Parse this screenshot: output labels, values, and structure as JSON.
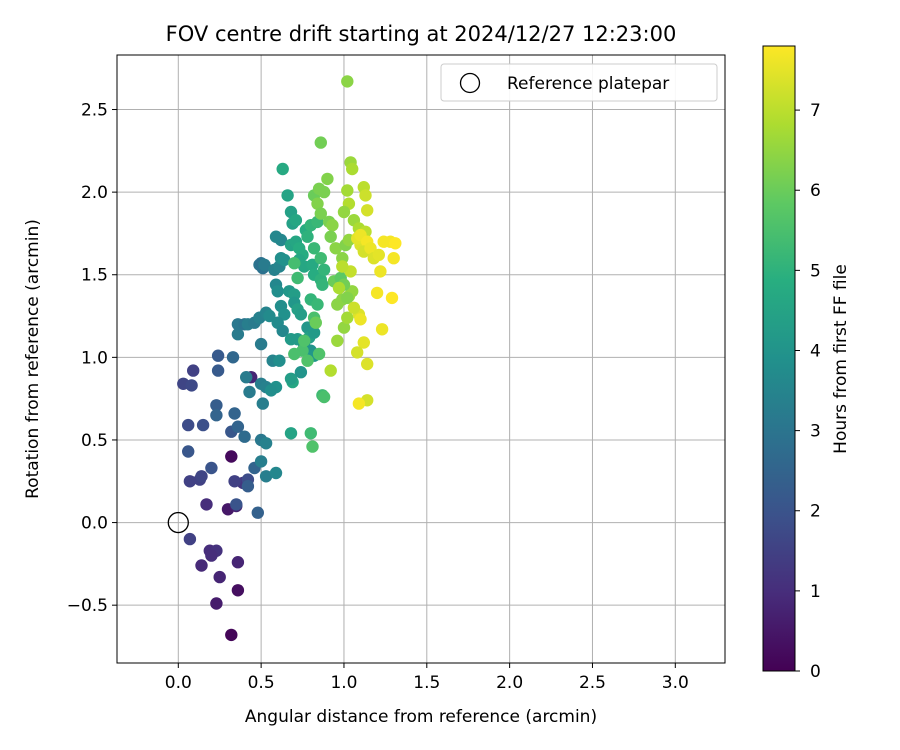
{
  "chart_data": {
    "type": "scatter",
    "title": "FOV centre drift starting at 2024/12/27 12:23:00",
    "xlabel": "Angular distance from reference (arcmin)",
    "ylabel": "Rotation from reference (arcmin)",
    "xlim": [
      -0.37,
      3.3
    ],
    "ylim": [
      -0.85,
      2.83
    ],
    "xticks": [
      0.0,
      0.5,
      1.0,
      1.5,
      2.0,
      2.5,
      3.0
    ],
    "xtick_labels": [
      "0.0",
      "0.5",
      "1.0",
      "1.5",
      "2.0",
      "2.5",
      "3.0"
    ],
    "yticks": [
      -0.5,
      0.0,
      0.5,
      1.0,
      1.5,
      2.0,
      2.5
    ],
    "ytick_labels": [
      "−0.5",
      "0.0",
      "0.5",
      "1.0",
      "1.5",
      "2.0",
      "2.5"
    ],
    "grid": true,
    "legend": {
      "position": "top-right",
      "entries": [
        "Reference platepar"
      ]
    },
    "reference_point": {
      "x": 0.0,
      "y": 0.0
    },
    "colorbar": {
      "label": "Hours from first FF file",
      "range": [
        0,
        7.8
      ],
      "ticks": [
        0,
        1,
        2,
        3,
        4,
        5,
        6,
        7
      ],
      "tick_labels": [
        "0",
        "1",
        "2",
        "3",
        "4",
        "5",
        "6",
        "7"
      ],
      "colormap": "viridis"
    },
    "series": [
      {
        "points": [
          [
            0.32,
            -0.68,
            0.1
          ],
          [
            0.36,
            -0.41,
            0.3
          ],
          [
            0.23,
            -0.49,
            0.6
          ],
          [
            0.25,
            -0.33,
            0.8
          ],
          [
            0.36,
            -0.24,
            0.8
          ],
          [
            0.14,
            -0.26,
            0.9
          ],
          [
            0.19,
            -0.17,
            1.0
          ],
          [
            0.23,
            -0.17,
            1.1
          ],
          [
            0.2,
            -0.2,
            1.0
          ],
          [
            0.07,
            -0.1,
            1.5
          ],
          [
            0.32,
            0.4,
            0.2
          ],
          [
            0.3,
            0.08,
            0.5
          ],
          [
            0.35,
            0.1,
            0.7
          ],
          [
            0.17,
            0.11,
            1.0
          ],
          [
            0.39,
            0.24,
            1.2
          ],
          [
            0.34,
            0.25,
            1.5
          ],
          [
            0.13,
            0.26,
            1.5
          ],
          [
            0.07,
            0.25,
            1.5
          ],
          [
            0.14,
            0.28,
            1.6
          ],
          [
            0.2,
            0.33,
            2.0
          ],
          [
            0.42,
            0.26,
            1.8
          ],
          [
            0.46,
            0.33,
            2.5
          ],
          [
            0.42,
            0.22,
            2.3
          ],
          [
            0.35,
            0.11,
            2.0
          ],
          [
            0.09,
            0.92,
            1.5
          ],
          [
            0.03,
            0.84,
            1.6
          ],
          [
            0.08,
            0.83,
            1.7
          ],
          [
            0.06,
            0.59,
            1.8
          ],
          [
            0.15,
            0.59,
            1.9
          ],
          [
            0.06,
            0.43,
            2.1
          ],
          [
            0.24,
            1.01,
            2.2
          ],
          [
            0.24,
            0.92,
            2.2
          ],
          [
            0.33,
            1.0,
            2.6
          ],
          [
            0.23,
            0.71,
            2.3
          ],
          [
            0.23,
            0.65,
            2.5
          ],
          [
            0.34,
            0.66,
            2.5
          ],
          [
            0.32,
            0.55,
            2.1
          ],
          [
            0.36,
            0.58,
            2.5
          ],
          [
            0.4,
            0.52,
            2.7
          ],
          [
            0.48,
            0.06,
            2.4
          ],
          [
            0.44,
            0.88,
            0.8
          ],
          [
            0.41,
            0.88,
            3.2
          ],
          [
            0.43,
            0.79,
            3.2
          ],
          [
            0.36,
            1.14,
            3.2
          ],
          [
            0.36,
            1.2,
            3.1
          ],
          [
            0.4,
            1.2,
            3.0
          ],
          [
            0.42,
            1.2,
            3.3
          ],
          [
            0.46,
            1.21,
            3.2
          ],
          [
            0.49,
            1.24,
            3.4
          ],
          [
            0.5,
            1.08,
            3.2
          ],
          [
            0.49,
            1.56,
            3.0
          ],
          [
            0.5,
            1.57,
            2.9
          ],
          [
            0.51,
            1.54,
            2.9
          ],
          [
            0.52,
            1.56,
            3.2
          ],
          [
            0.53,
            1.27,
            3.5
          ],
          [
            0.55,
            1.25,
            3.7
          ],
          [
            0.5,
            0.84,
            3.3
          ],
          [
            0.51,
            0.72,
            3.3
          ],
          [
            0.53,
            0.82,
            3.4
          ],
          [
            0.5,
            0.5,
            3.1
          ],
          [
            0.53,
            0.48,
            3.4
          ],
          [
            0.5,
            0.37,
            3.3
          ],
          [
            0.53,
            0.28,
            3.3
          ],
          [
            0.59,
            0.3,
            3.6
          ],
          [
            0.58,
            1.53,
            3.4
          ],
          [
            0.61,
            1.55,
            3.5
          ],
          [
            0.59,
            1.44,
            3.6
          ],
          [
            0.6,
            1.4,
            3.8
          ],
          [
            0.62,
            1.31,
            3.8
          ],
          [
            0.64,
            1.26,
            3.9
          ],
          [
            0.59,
            1.73,
            3.6
          ],
          [
            0.62,
            1.71,
            3.6
          ],
          [
            0.62,
            1.6,
            3.8
          ],
          [
            0.64,
            1.59,
            3.9
          ],
          [
            0.6,
            1.21,
            3.7
          ],
          [
            0.63,
            1.16,
            3.6
          ],
          [
            0.57,
            0.98,
            3.5
          ],
          [
            0.61,
            0.98,
            3.8
          ],
          [
            0.59,
            0.82,
            3.9
          ],
          [
            0.56,
            0.8,
            3.8
          ],
          [
            0.63,
            2.14,
            4.7
          ],
          [
            0.66,
            1.98,
            4.5
          ],
          [
            0.68,
            1.88,
            4.4
          ],
          [
            0.69,
            1.81,
            4.4
          ],
          [
            0.71,
            1.83,
            4.6
          ],
          [
            0.68,
            1.68,
            4.5
          ],
          [
            0.71,
            1.7,
            4.6
          ],
          [
            0.73,
            1.66,
            4.8
          ],
          [
            0.75,
            1.62,
            4.8
          ],
          [
            0.73,
            1.59,
            4.6
          ],
          [
            0.67,
            1.4,
            4.1
          ],
          [
            0.7,
            1.38,
            4.3
          ],
          [
            0.7,
            1.33,
            4.1
          ],
          [
            0.72,
            1.29,
            4.4
          ],
          [
            0.74,
            1.26,
            4.3
          ],
          [
            0.68,
            1.11,
            4.2
          ],
          [
            0.72,
            1.11,
            4.2
          ],
          [
            0.76,
            1.07,
            4.3
          ],
          [
            0.69,
            0.85,
            4.6
          ],
          [
            0.68,
            0.87,
            4.3
          ],
          [
            0.74,
            0.91,
            4.0
          ],
          [
            0.68,
            0.54,
            4.5
          ],
          [
            0.78,
            1.18,
            4.1
          ],
          [
            0.79,
            1.12,
            4.4
          ],
          [
            0.82,
            1.15,
            4.2
          ],
          [
            0.8,
            1.04,
            4.0
          ],
          [
            0.82,
            1.01,
            4.1
          ],
          [
            0.76,
            1.55,
            4.6
          ],
          [
            0.81,
            1.56,
            4.7
          ],
          [
            0.82,
            1.5,
            4.8
          ],
          [
            0.86,
            1.47,
            5.0
          ],
          [
            0.77,
            1.77,
            4.8
          ],
          [
            0.8,
            1.8,
            5.1
          ],
          [
            0.84,
            1.82,
            5.2
          ],
          [
            0.78,
            1.73,
            5.0
          ],
          [
            0.82,
            1.66,
            5.2
          ],
          [
            0.86,
            1.6,
            5.3
          ],
          [
            0.8,
            1.35,
            5.1
          ],
          [
            0.84,
            1.32,
            5.2
          ],
          [
            0.82,
            1.24,
            5.5
          ],
          [
            0.87,
            1.44,
            5.1
          ],
          [
            0.88,
            1.53,
            5.1
          ],
          [
            0.72,
            1.48,
            5.3
          ],
          [
            0.7,
            1.57,
            5.4
          ],
          [
            0.75,
            1.04,
            5.5
          ],
          [
            0.7,
            1.02,
            5.5
          ],
          [
            0.76,
            1.1,
            5.6
          ],
          [
            0.78,
            0.98,
            5.6
          ],
          [
            0.8,
            0.54,
            5.3
          ],
          [
            0.81,
            0.46,
            5.6
          ],
          [
            0.87,
            0.77,
            5.3
          ],
          [
            0.88,
            0.76,
            5.5
          ],
          [
            0.85,
            1.02,
            5.6
          ],
          [
            0.83,
            1.21,
            6.0
          ],
          [
            0.82,
            1.98,
            6.0
          ],
          [
            0.85,
            2.02,
            6.2
          ],
          [
            0.88,
            2.0,
            6.2
          ],
          [
            0.9,
            2.08,
            6.3
          ],
          [
            0.84,
            1.93,
            6.3
          ],
          [
            0.86,
            1.87,
            6.2
          ],
          [
            0.91,
            1.82,
            6.2
          ],
          [
            0.93,
            1.8,
            6.4
          ],
          [
            0.86,
            2.3,
            6.1
          ],
          [
            0.92,
            1.73,
            6.2
          ],
          [
            0.95,
            1.66,
            6.4
          ],
          [
            0.99,
            1.6,
            6.4
          ],
          [
            1.01,
            1.68,
            6.3
          ],
          [
            1.03,
            1.71,
            6.5
          ],
          [
            0.96,
            1.32,
            6.4
          ],
          [
            0.99,
            1.35,
            6.4
          ],
          [
            1.03,
            1.37,
            6.6
          ],
          [
            1.05,
            1.4,
            6.5
          ],
          [
            0.94,
            1.46,
            6.0
          ],
          [
            0.98,
            1.48,
            5.8
          ],
          [
            1.0,
            1.44,
            6.1
          ],
          [
            1.02,
            1.36,
            6.3
          ],
          [
            0.96,
            1.1,
            6.6
          ],
          [
            1.0,
            1.18,
            6.5
          ],
          [
            1.02,
            1.24,
            6.7
          ],
          [
            0.92,
            0.92,
            6.9
          ],
          [
            1.02,
            2.67,
            6.4
          ],
          [
            1.04,
            2.18,
            6.6
          ],
          [
            1.05,
            2.14,
            6.8
          ],
          [
            1.02,
            2.01,
            6.7
          ],
          [
            1.03,
            1.93,
            6.9
          ],
          [
            1.0,
            1.88,
            6.5
          ],
          [
            1.06,
            1.83,
            6.6
          ],
          [
            1.09,
            1.78,
            6.8
          ],
          [
            1.12,
            1.71,
            7.0
          ],
          [
            1.13,
            1.76,
            7.0
          ],
          [
            1.12,
            2.03,
            7.0
          ],
          [
            1.13,
            1.98,
            7.2
          ],
          [
            1.14,
            1.89,
            7.3
          ],
          [
            1.1,
            1.68,
            7.4
          ],
          [
            1.08,
            1.72,
            7.5
          ],
          [
            1.1,
            1.74,
            7.6
          ],
          [
            1.14,
            1.7,
            7.7
          ],
          [
            1.12,
            1.64,
            7.3
          ],
          [
            1.16,
            1.66,
            7.6
          ],
          [
            1.18,
            1.6,
            7.4
          ],
          [
            1.21,
            1.62,
            7.5
          ],
          [
            1.24,
            1.7,
            7.7
          ],
          [
            1.28,
            1.7,
            7.7
          ],
          [
            1.31,
            1.69,
            7.8
          ],
          [
            1.3,
            1.6,
            7.7
          ],
          [
            1.22,
            1.52,
            7.6
          ],
          [
            1.2,
            1.39,
            7.7
          ],
          [
            1.29,
            1.36,
            7.8
          ],
          [
            1.23,
            1.17,
            7.6
          ],
          [
            1.12,
            1.09,
            7.5
          ],
          [
            1.08,
            1.03,
            7.3
          ],
          [
            1.14,
            0.96,
            7.4
          ],
          [
            1.14,
            0.74,
            7.3
          ],
          [
            1.09,
            0.72,
            7.7
          ],
          [
            1.09,
            1.26,
            7.4
          ],
          [
            1.1,
            1.23,
            7.6
          ],
          [
            1.06,
            1.3,
            7.2
          ],
          [
            1.04,
            1.52,
            7.1
          ],
          [
            0.99,
            1.55,
            7.0
          ],
          [
            0.97,
            1.42,
            6.8
          ]
        ]
      }
    ]
  }
}
